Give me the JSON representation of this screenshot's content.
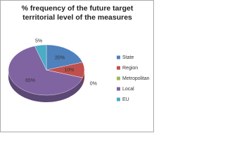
{
  "chart_data": {
    "type": "pie",
    "title": "% frequency of the future target territorial level of the measures",
    "categories": [
      "State",
      "Region",
      "Metropolitan",
      "Local",
      "EU"
    ],
    "values": [
      20,
      10,
      0,
      65,
      5
    ],
    "value_labels": [
      "20%",
      "10%",
      "0%",
      "65%",
      "5%"
    ],
    "colors": [
      "#4f81bd",
      "#c0504d",
      "#9bbb59",
      "#8064a2",
      "#4bacc6"
    ],
    "legend": "right"
  }
}
